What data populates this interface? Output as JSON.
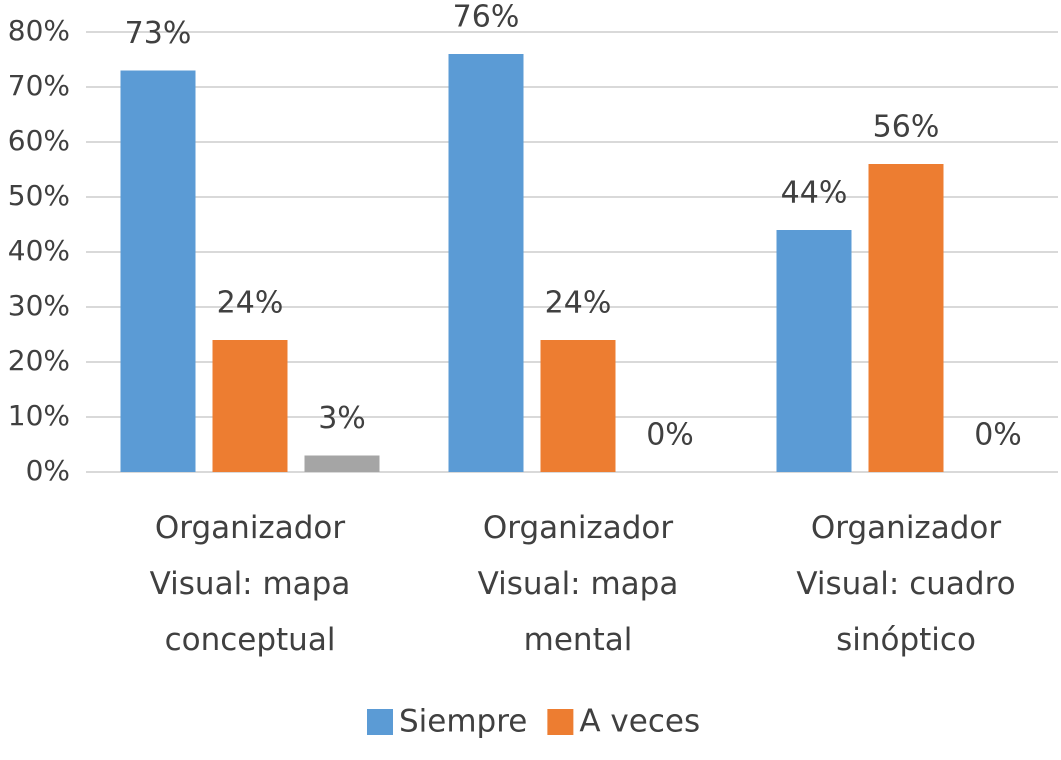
{
  "chart_data": {
    "type": "bar",
    "categories": [
      "Organizador Visual: mapa conceptual",
      "Organizador Visual: mapa mental",
      "Organizador Visual: cuadro sinóptico"
    ],
    "series": [
      {
        "name": "Siempre",
        "color": "#5b9bd5",
        "values": [
          73,
          76,
          44
        ],
        "value_labels": [
          "73%",
          "76%",
          "44%"
        ]
      },
      {
        "name": "A veces",
        "color": "#ed7d31",
        "values": [
          24,
          24,
          56
        ],
        "value_labels": [
          "24%",
          "24%",
          "56%"
        ]
      },
      {
        "color": "#a5a5a5",
        "values": [
          3,
          0,
          0
        ],
        "value_labels": [
          "3%",
          "0%",
          "0%"
        ]
      }
    ],
    "ylim": [
      0,
      80
    ],
    "yticks": [
      {
        "value": 0,
        "label": "0%"
      },
      {
        "value": 10,
        "label": "10%"
      },
      {
        "value": 20,
        "label": "20%"
      },
      {
        "value": 30,
        "label": "30%"
      },
      {
        "value": 40,
        "label": "40%"
      },
      {
        "value": 50,
        "label": "50%"
      },
      {
        "value": 60,
        "label": "60%"
      },
      {
        "value": 70,
        "label": "70%"
      },
      {
        "value": 80,
        "label": "80%"
      }
    ],
    "grid": true,
    "legend": "bottom"
  }
}
